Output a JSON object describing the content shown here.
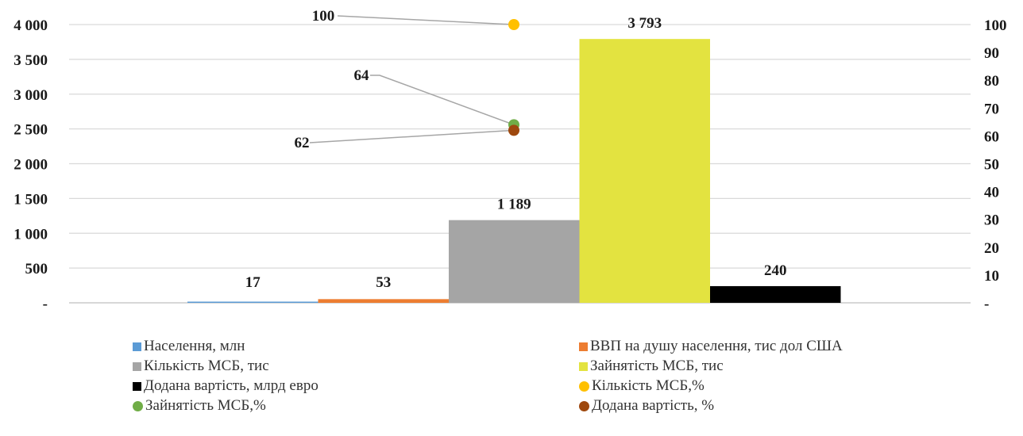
{
  "chart_data": {
    "type": "bar",
    "title": "",
    "xlabel": "",
    "ylabel": "",
    "ylim": [
      0,
      4000
    ],
    "y2lim": [
      0,
      100
    ],
    "grid": true,
    "legend_position": "bottom",
    "y_ticks": [
      "-",
      "500",
      "1 000",
      "1 500",
      "2 000",
      "2 500",
      "3 000",
      "3 500",
      "4 000"
    ],
    "y2_ticks": [
      "-",
      "10",
      "20",
      "30",
      "40",
      "50",
      "60",
      "70",
      "80",
      "90",
      "100"
    ],
    "bars": [
      {
        "name": "Населення, млн",
        "value": 17,
        "label": "17",
        "color": "#5b9bd5"
      },
      {
        "name": "ВВП на душу населення, тис дол США",
        "value": 53,
        "label": "53",
        "color": "#ed7d31"
      },
      {
        "name": "Кількість МСБ, тис",
        "value": 1189,
        "label": "1 189",
        "color": "#a5a5a5"
      },
      {
        "name": "Зайнятість МСБ, тис",
        "value": 3793,
        "label": "3 793",
        "color": "#e3e340"
      },
      {
        "name": "Додана вартість, млрд евро",
        "value": 240,
        "label": "240",
        "color": "#000000"
      }
    ],
    "points": [
      {
        "name": "Кількість МСБ,%",
        "value": 100,
        "label": "100",
        "color": "#ffc000",
        "axis": "secondary"
      },
      {
        "name": "Зайнятість  МСБ,%",
        "value": 64,
        "label": "64",
        "color": "#70ad47",
        "axis": "secondary"
      },
      {
        "name": "Додана вартість, %",
        "value": 62,
        "label": "62",
        "color": "#9e480e",
        "axis": "secondary"
      }
    ],
    "legend": [
      {
        "label": "Населення, млн",
        "color": "#5b9bd5",
        "marker": "square"
      },
      {
        "label": "ВВП на душу населення, тис дол США",
        "color": "#ed7d31",
        "marker": "square"
      },
      {
        "label": "Кількість МСБ, тис",
        "color": "#a5a5a5",
        "marker": "square"
      },
      {
        "label": "Зайнятість МСБ, тис",
        "color": "#e3e340",
        "marker": "square"
      },
      {
        "label": "Додана вартість, млрд евро",
        "color": "#000000",
        "marker": "square"
      },
      {
        "label": "Кількість МСБ,%",
        "color": "#ffc000",
        "marker": "circle"
      },
      {
        "label": "Зайнятість  МСБ,%",
        "color": "#70ad47",
        "marker": "circle"
      },
      {
        "label": "Додана вартість, %",
        "color": "#9e480e",
        "marker": "circle"
      }
    ]
  }
}
